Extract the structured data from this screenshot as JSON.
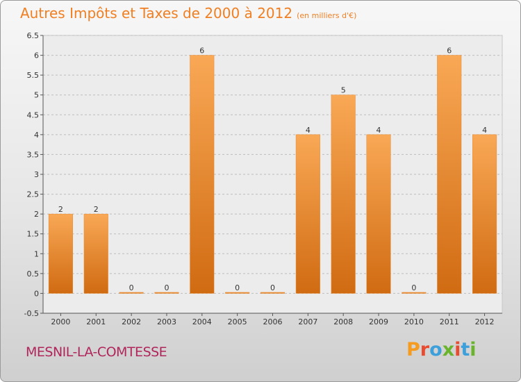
{
  "title": {
    "main": "Autres Impôts et Taxes de 2000 à 2012",
    "unit": "(en milliers d'€)"
  },
  "commune": "MESNIL-LA-COMTESSE",
  "logo": {
    "text": "Proxiti",
    "letter_colors": [
      "#f59b1f",
      "#e84b2f",
      "#3da0db",
      "#6ab42d",
      "#e84b2f",
      "#3da0db",
      "#6ab42d"
    ]
  },
  "colors": {
    "bar_light": "#f9a855",
    "bar_dark": "#d06b12",
    "grid": "#bdbdbd",
    "axis": "#555555",
    "title": "#ef7f22",
    "commune": "#b0265b"
  },
  "chart_data": {
    "type": "bar",
    "categories": [
      "2000",
      "2001",
      "2002",
      "2003",
      "2004",
      "2005",
      "2006",
      "2007",
      "2008",
      "2009",
      "2010",
      "2011",
      "2012"
    ],
    "values": [
      2,
      2,
      0,
      0,
      6,
      0,
      0,
      4,
      5,
      4,
      0,
      6,
      4
    ],
    "data_labels": [
      "2",
      "2",
      "0",
      "0",
      "6",
      "0",
      "0",
      "4",
      "5",
      "4",
      "0",
      "6",
      "4"
    ],
    "yticks": [
      "-0.5",
      "0",
      "0.5",
      "1",
      "1.5",
      "2",
      "2.5",
      "3",
      "3.5",
      "4",
      "4.5",
      "5",
      "5.5",
      "6",
      "6.5"
    ],
    "ylim": [
      -0.5,
      6.5
    ],
    "grid": true
  }
}
